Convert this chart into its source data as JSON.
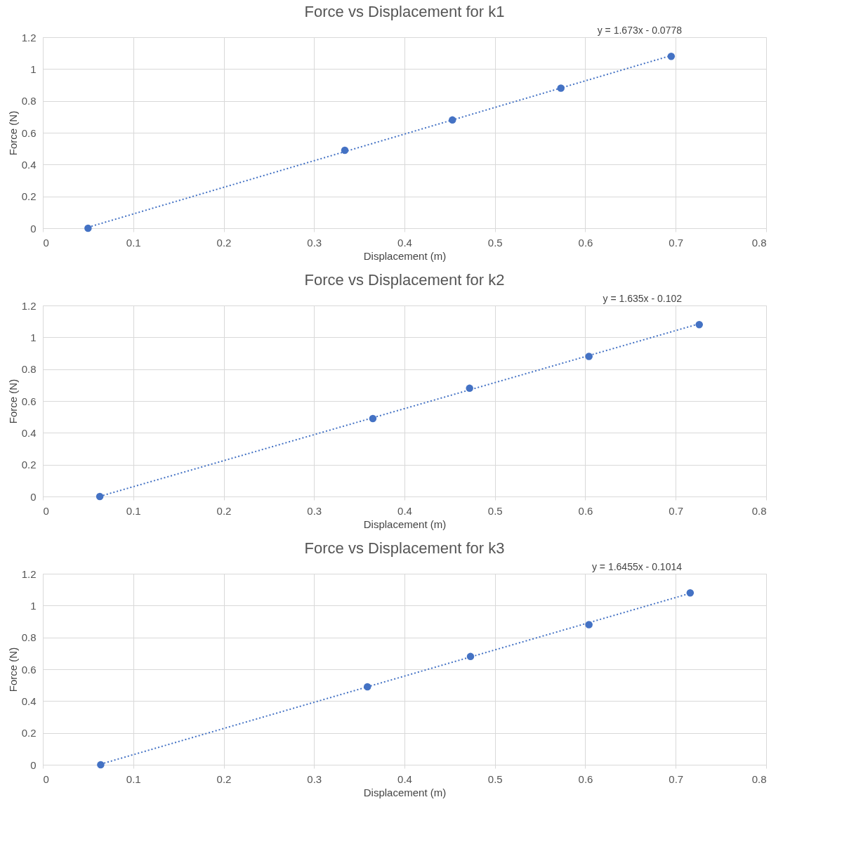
{
  "chart_data": [
    {
      "type": "scatter",
      "title": "Force vs Displacement for k1",
      "xlabel": "Displacement (m)",
      "ylabel": "Force (N)",
      "annotations": [
        "y = 1.673x - 0.0778"
      ],
      "xlim": [
        0,
        0.8
      ],
      "xticks": [
        0,
        0.1,
        0.2,
        0.3,
        0.4,
        0.5,
        0.6,
        0.7,
        0.8
      ],
      "ylim": [
        0,
        1.2
      ],
      "yticks": [
        0,
        0.2,
        0.4,
        0.6,
        0.8,
        1,
        1.2
      ],
      "grid": true,
      "marker": "circle",
      "series": [
        {
          "type": "scatter",
          "color": "#4472c4",
          "x": [
            0.05,
            0.334,
            0.453,
            0.573,
            0.695
          ],
          "values": [
            0,
            0.49,
            0.68,
            0.88,
            1.08
          ]
        },
        {
          "type": "line",
          "color": "#4472c4",
          "line_style": "dotted",
          "marker": "none",
          "x": [
            0.05,
            0.695
          ],
          "values": [
            0.006,
            1.085
          ]
        }
      ]
    },
    {
      "type": "scatter",
      "title": "Force vs Displacement for k2",
      "xlabel": "Displacement (m)",
      "ylabel": "Force (N)",
      "annotations": [
        "y = 1.635x - 0.102"
      ],
      "xlim": [
        0,
        0.8
      ],
      "xticks": [
        0,
        0.1,
        0.2,
        0.3,
        0.4,
        0.5,
        0.6,
        0.7,
        0.8
      ],
      "ylim": [
        0,
        1.2
      ],
      "yticks": [
        0,
        0.2,
        0.4,
        0.6,
        0.8,
        1,
        1.2
      ],
      "grid": true,
      "marker": "circle",
      "series": [
        {
          "type": "scatter",
          "color": "#4472c4",
          "x": [
            0.063,
            0.365,
            0.472,
            0.604,
            0.726
          ],
          "values": [
            0,
            0.49,
            0.68,
            0.88,
            1.08
          ]
        },
        {
          "type": "line",
          "color": "#4472c4",
          "line_style": "dotted",
          "marker": "none",
          "x": [
            0.063,
            0.726
          ],
          "values": [
            0.001,
            1.085
          ]
        }
      ]
    },
    {
      "type": "scatter",
      "title": "Force vs Displacement for k3",
      "xlabel": "Displacement (m)",
      "ylabel": "Force (N)",
      "annotations": [
        "y = 1.6455x - 0.1014"
      ],
      "xlim": [
        0,
        0.8
      ],
      "xticks": [
        0,
        0.1,
        0.2,
        0.3,
        0.4,
        0.5,
        0.6,
        0.7,
        0.8
      ],
      "ylim": [
        0,
        1.2
      ],
      "yticks": [
        0,
        0.2,
        0.4,
        0.6,
        0.8,
        1,
        1.2
      ],
      "grid": true,
      "marker": "circle",
      "series": [
        {
          "type": "scatter",
          "color": "#4472c4",
          "x": [
            0.064,
            0.359,
            0.473,
            0.604,
            0.716
          ],
          "values": [
            0,
            0.49,
            0.68,
            0.88,
            1.08
          ]
        },
        {
          "type": "line",
          "color": "#4472c4",
          "line_style": "dotted",
          "marker": "none",
          "x": [
            0.064,
            0.716
          ],
          "values": [
            0.004,
            1.077
          ]
        }
      ]
    }
  ]
}
